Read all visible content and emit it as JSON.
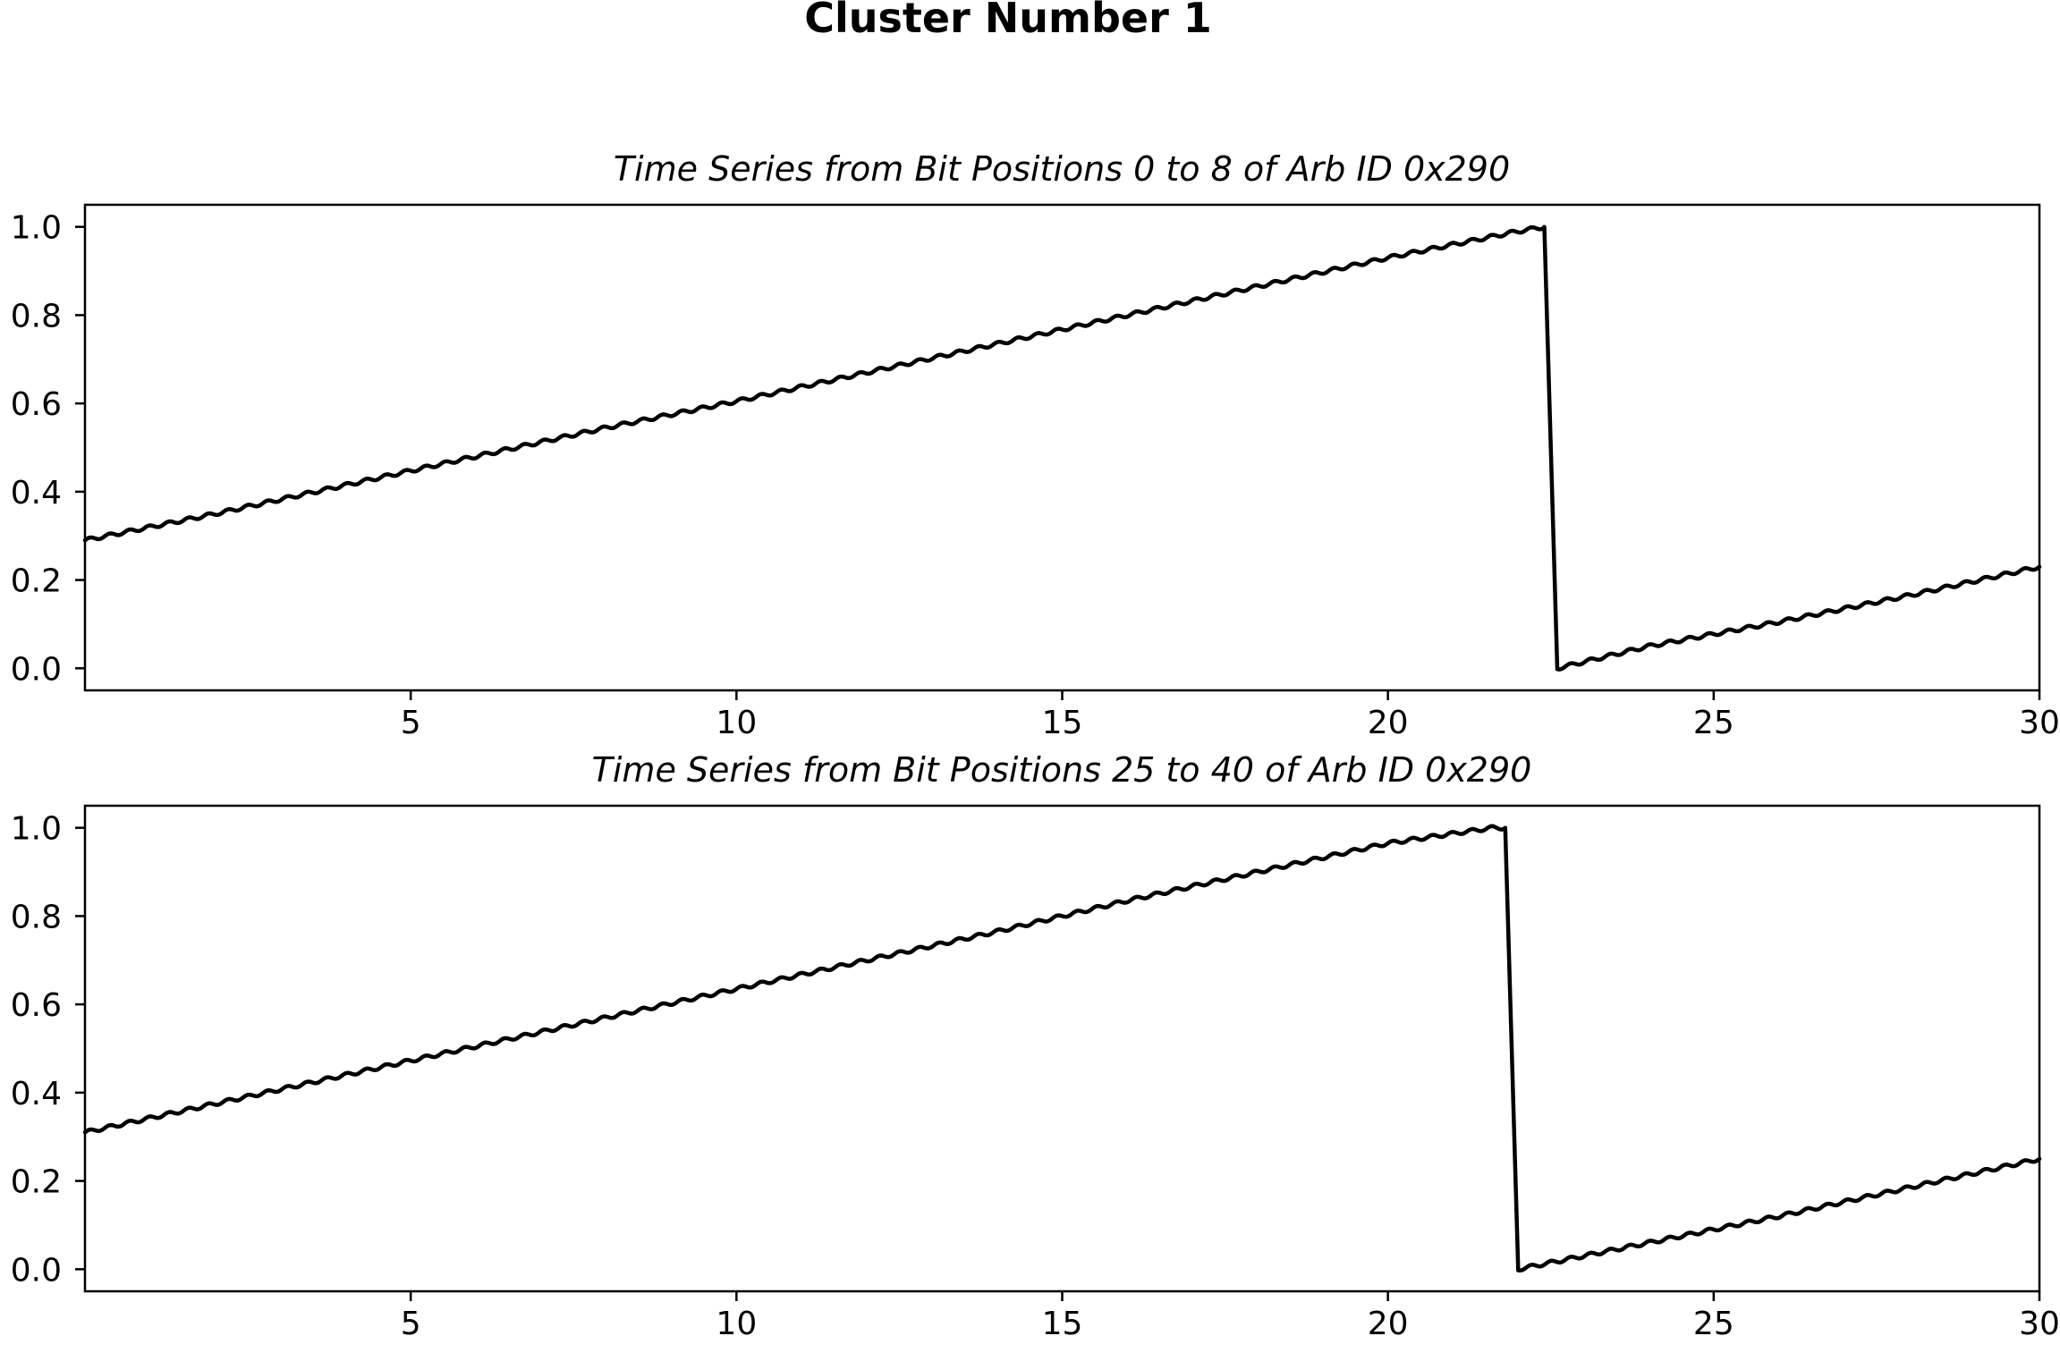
{
  "figure": {
    "title": "Cluster Number 1",
    "line_color": "#000000"
  },
  "chart_data": [
    {
      "type": "line",
      "title": "Time Series from Bit Positions 0 to 8 of Arb ID 0x290",
      "xlabel": "",
      "ylabel": "",
      "xlim": [
        0,
        30
      ],
      "ylim": [
        -0.05,
        1.05
      ],
      "xticks": [
        5,
        10,
        15,
        20,
        25,
        30
      ],
      "xtick_labels": [
        "5",
        "10",
        "15",
        "20",
        "25",
        "30"
      ],
      "yticks": [
        0.0,
        0.2,
        0.4,
        0.6,
        0.8,
        1.0
      ],
      "ytick_labels": [
        "0.0",
        "0.2",
        "0.4",
        "0.6",
        "0.8",
        "1.0"
      ],
      "grid": false,
      "series": [
        {
          "x": [
            0,
            2,
            4,
            6,
            8,
            10,
            12,
            14,
            16,
            18,
            20,
            22,
            22.4,
            22.6,
            24,
            26,
            28,
            30
          ],
          "y": [
            0.29,
            0.35,
            0.415,
            0.48,
            0.545,
            0.605,
            0.67,
            0.735,
            0.8,
            0.865,
            0.93,
            0.99,
            1.0,
            0.0,
            0.05,
            0.105,
            0.165,
            0.23
          ]
        }
      ]
    },
    {
      "type": "line",
      "title": "Time Series from Bit Positions 25 to 40 of Arb ID 0x290",
      "xlabel": "",
      "ylabel": "",
      "xlim": [
        0,
        30
      ],
      "ylim": [
        -0.05,
        1.05
      ],
      "xticks": [
        5,
        10,
        15,
        20,
        25,
        30
      ],
      "xtick_labels": [
        "5",
        "10",
        "15",
        "20",
        "25",
        "30"
      ],
      "yticks": [
        0.0,
        0.2,
        0.4,
        0.6,
        0.8,
        1.0
      ],
      "ytick_labels": [
        "0.0",
        "0.2",
        "0.4",
        "0.6",
        "0.8",
        "1.0"
      ],
      "grid": false,
      "series": [
        {
          "x": [
            0,
            2,
            4,
            6,
            8,
            10,
            12,
            14,
            16,
            18,
            20,
            21.6,
            21.8,
            22.0,
            24,
            26,
            28,
            30
          ],
          "y": [
            0.31,
            0.375,
            0.44,
            0.505,
            0.57,
            0.635,
            0.7,
            0.765,
            0.835,
            0.9,
            0.965,
            1.0,
            1.0,
            0.0,
            0.06,
            0.12,
            0.185,
            0.25
          ]
        }
      ]
    }
  ]
}
